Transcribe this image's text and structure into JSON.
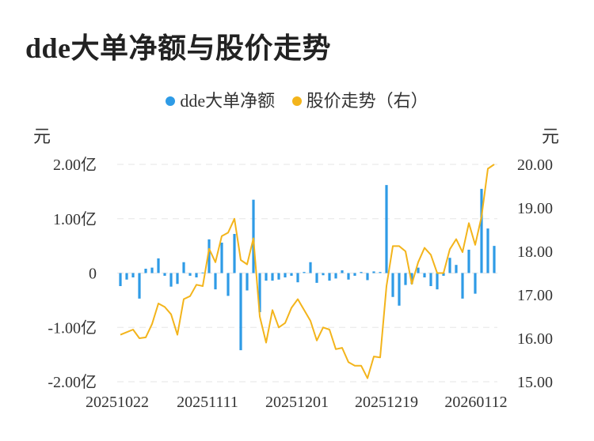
{
  "title": "dde大单净额与股价走势",
  "legend": {
    "series1": "dde大单净额",
    "series2": "股价走势（右）"
  },
  "units": {
    "left": "元",
    "right": "元"
  },
  "colors": {
    "bar": "#2e9be6",
    "line": "#f3b41b",
    "grid": "#e6e6e6"
  },
  "chart_data": {
    "type": "bar+line",
    "x_tick_labels": [
      "20251022",
      "20251111",
      "20251201",
      "20251219",
      "20260112"
    ],
    "y_left": {
      "ticks": [
        2.0,
        1.0,
        0,
        -1.0,
        -2.0
      ],
      "tick_labels": [
        "2.00亿",
        "1.00亿",
        "0",
        "-1.00亿",
        "-2.00亿"
      ],
      "ylim": [
        -2.0,
        2.0
      ]
    },
    "y_right": {
      "ticks": [
        20.0,
        19.0,
        18.0,
        17.0,
        16.0,
        15.0
      ],
      "tick_labels": [
        "20.00",
        "19.00",
        "18.00",
        "17.00",
        "16.00",
        "15.00"
      ],
      "ylim": [
        15.0,
        20.0
      ]
    },
    "series": [
      {
        "name": "dde大单净额",
        "kind": "bar",
        "axis": "left",
        "values": [
          -0.24,
          -0.12,
          -0.08,
          -0.47,
          0.08,
          0.1,
          0.27,
          -0.05,
          -0.25,
          -0.2,
          0.2,
          -0.05,
          -0.08,
          0.01,
          0.62,
          -0.3,
          0.56,
          -0.42,
          0.72,
          -1.42,
          -0.32,
          1.35,
          -0.72,
          -0.14,
          -0.14,
          -0.12,
          -0.08,
          -0.05,
          -0.17,
          0.02,
          0.2,
          -0.18,
          -0.04,
          -0.14,
          -0.1,
          0.05,
          -0.12,
          -0.05,
          0.02,
          -0.13,
          0.03,
          0.02,
          1.62,
          -0.44,
          -0.6,
          -0.22,
          -0.2,
          0.1,
          -0.08,
          -0.24,
          -0.3,
          -0.05,
          0.28,
          0.15,
          -0.47,
          0.43,
          -0.38,
          1.55,
          0.82,
          0.5
        ]
      },
      {
        "name": "股价走势（右）",
        "kind": "line",
        "axis": "right",
        "values": [
          16.08,
          16.14,
          16.2,
          16.0,
          16.02,
          16.33,
          16.8,
          16.72,
          16.55,
          16.08,
          16.9,
          16.97,
          17.23,
          17.2,
          18.06,
          17.75,
          18.35,
          18.43,
          18.75,
          17.8,
          17.7,
          18.3,
          16.5,
          15.9,
          16.65,
          16.25,
          16.35,
          16.7,
          16.9,
          16.65,
          16.4,
          15.95,
          16.25,
          16.2,
          15.75,
          15.78,
          15.45,
          15.37,
          15.37,
          15.08,
          15.58,
          15.56,
          17.2,
          18.12,
          18.12,
          18.0,
          17.25,
          17.75,
          18.08,
          17.92,
          17.5,
          17.5,
          18.05,
          18.28,
          17.98,
          18.65,
          18.15,
          18.8,
          19.9,
          20.0
        ]
      }
    ]
  }
}
